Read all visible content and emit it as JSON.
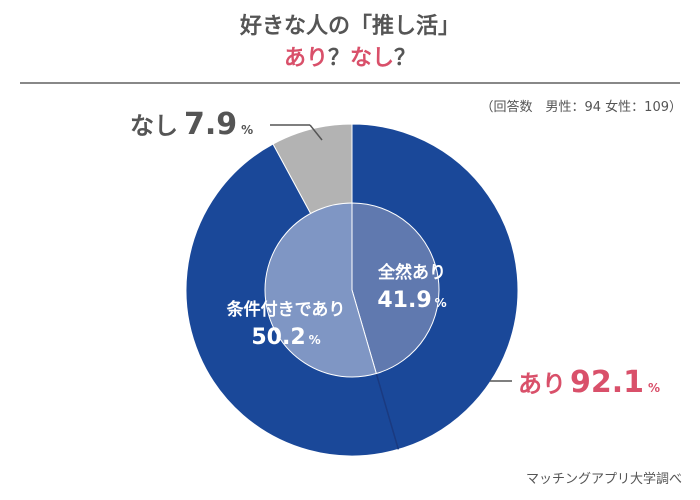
{
  "title": {
    "line1": "好きな人の「推し活」",
    "line2_yes": "あり",
    "line2_q1": "？",
    "line2_no": "なし",
    "line2_q2": "？"
  },
  "meta": "（回答数　男性：94 女性：109）",
  "source": "マッチングアプリ大学調べ",
  "colors": {
    "dark_blue": "#1a4899",
    "mid_blue": "#6079af",
    "light_blue": "#7f96c4",
    "grey": "#b3b3b3",
    "accent": "#d9506a",
    "text_grey": "#555555"
  },
  "chart_data": {
    "type": "pie",
    "outer": [
      {
        "label": "なし",
        "value": 7.9,
        "unit": "%",
        "color": "#b3b3b3"
      },
      {
        "label": "あり",
        "value": 92.1,
        "unit": "%",
        "color": "#1a4899"
      }
    ],
    "inner": [
      {
        "label": "全然あり",
        "value": 41.9,
        "unit": "%",
        "color": "#6079af"
      },
      {
        "label": "条件付きであり",
        "value": 50.2,
        "unit": "%",
        "color": "#7f96c4"
      }
    ]
  }
}
